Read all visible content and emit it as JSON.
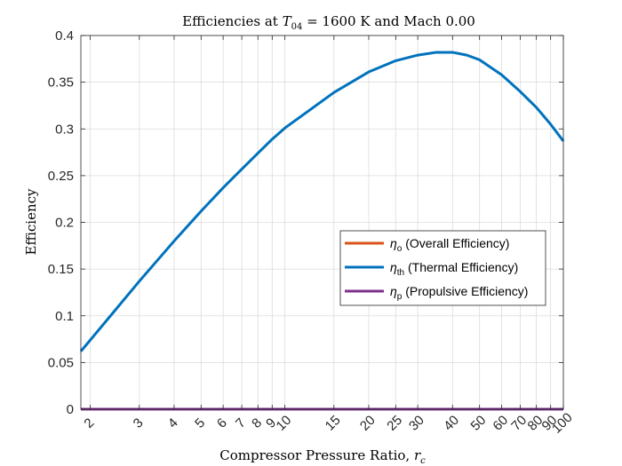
{
  "chart_data": {
    "type": "line",
    "title_prefix": "Efficiencies at ",
    "title_var": "T",
    "title_sub": "04",
    "title_suffix": " = 1600 K and Mach 0.00",
    "xlabel": "Compressor Pressure Ratio, ",
    "xlabel_var": "r",
    "xlabel_sub": "c",
    "ylabel": "Efficiency",
    "x_scale": "log",
    "xlim": [
      1.85,
      100
    ],
    "ylim": [
      0,
      0.4
    ],
    "x_ticks": [
      2,
      3,
      4,
      5,
      6,
      7,
      8,
      9,
      10,
      15,
      20,
      25,
      30,
      40,
      50,
      60,
      70,
      80,
      90,
      100
    ],
    "x_tick_labels": [
      "2",
      "3",
      "4",
      "5",
      "6",
      "7",
      "8",
      "9",
      "10",
      "15",
      "20",
      "25",
      "30",
      "40",
      "50",
      "60",
      "70",
      "80",
      "90",
      "100"
    ],
    "y_ticks": [
      0,
      0.05,
      0.1,
      0.15,
      0.2,
      0.25,
      0.3,
      0.35,
      0.4
    ],
    "y_tick_labels": [
      "0",
      "0.05",
      "0.1",
      "0.15",
      "0.2",
      "0.25",
      "0.3",
      "0.35",
      "0.4"
    ],
    "grid": true,
    "legend_position": "right",
    "series": [
      {
        "name": "(Overall Efficiency)",
        "symbol": "η",
        "sub": "o",
        "color": "#d95319",
        "x": [
          1.85,
          100
        ],
        "y": [
          0,
          0
        ]
      },
      {
        "name": "(Thermal Efficiency)",
        "symbol": "η",
        "sub": "th",
        "color": "#0072bd",
        "x": [
          1.85,
          2,
          3,
          4,
          5,
          6,
          7,
          8,
          9,
          10,
          15,
          20,
          25,
          30,
          35,
          40,
          45,
          50,
          60,
          70,
          80,
          90,
          100
        ],
        "y": [
          0.062,
          0.074,
          0.137,
          0.18,
          0.212,
          0.237,
          0.257,
          0.274,
          0.289,
          0.301,
          0.339,
          0.361,
          0.373,
          0.379,
          0.382,
          0.382,
          0.379,
          0.374,
          0.358,
          0.34,
          0.323,
          0.305,
          0.287
        ]
      },
      {
        "name": "(Propulsive Efficiency)",
        "symbol": "η",
        "sub": "p",
        "color": "#7e2f8e",
        "x": [
          1.85,
          100
        ],
        "y": [
          0,
          0
        ]
      }
    ]
  }
}
